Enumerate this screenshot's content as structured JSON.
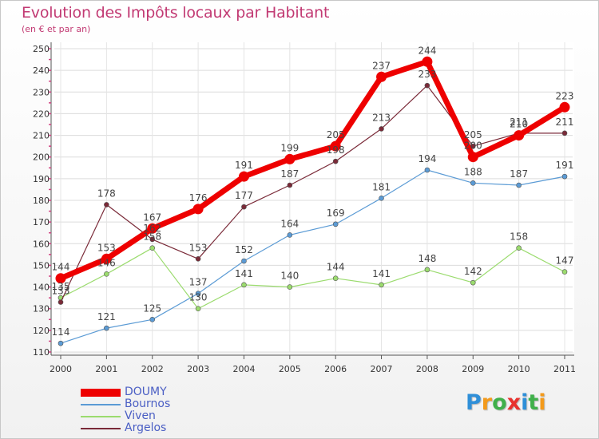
{
  "header": {
    "title": "Evolution des Impôts locaux par Habitant",
    "subtitle": "(en € et par an)"
  },
  "logo": {
    "letters": [
      "P",
      "r",
      "o",
      "x",
      "i",
      "t",
      "i"
    ],
    "colors": [
      "#2f8fd8",
      "#f39a1b",
      "#3fb04a",
      "#e8322e",
      "#2f8fd8",
      "#3fb04a",
      "#f39a1b"
    ]
  },
  "chart_data": {
    "type": "line",
    "x": [
      "2000",
      "2001",
      "2002",
      "2003",
      "2004",
      "2005",
      "2006",
      "2007",
      "2008",
      "2009",
      "2010",
      "2011"
    ],
    "ylim": [
      110,
      250
    ],
    "yticks": [
      110,
      120,
      130,
      140,
      150,
      160,
      170,
      180,
      190,
      200,
      210,
      220,
      230,
      240,
      250
    ],
    "grid": true,
    "legend_position": "bottom-left",
    "series": [
      {
        "name": "DOUMY",
        "color": "#ee0000",
        "values": [
          144,
          153,
          167,
          176,
          191,
          199,
          205,
          237,
          244,
          200,
          210,
          223
        ]
      },
      {
        "name": "Bournos",
        "color": "#5b9bd5",
        "values": [
          114,
          121,
          125,
          137,
          152,
          164,
          169,
          181,
          194,
          188,
          187,
          191
        ]
      },
      {
        "name": "Viven",
        "color": "#9bdb6e",
        "values": [
          135,
          146,
          158,
          130,
          141,
          140,
          144,
          141,
          148,
          142,
          158,
          147
        ]
      },
      {
        "name": "Argelos",
        "color": "#7a2a38",
        "values": [
          133,
          178,
          162,
          153,
          177,
          187,
          198,
          213,
          233,
          205,
          211,
          211
        ]
      }
    ],
    "data_labels": [
      [
        "144",
        "153",
        "167",
        "176",
        "191",
        "199",
        "205",
        "237",
        "244",
        "200",
        "210",
        "223"
      ],
      [
        "114",
        "121",
        "125",
        "137",
        "152",
        "164",
        "169",
        "181",
        "194",
        "188",
        "187",
        "191"
      ],
      [
        "135",
        "146",
        "158",
        "130",
        "141",
        "140",
        "144",
        "141",
        "148",
        "142",
        "158",
        "147"
      ],
      [
        "133",
        "178",
        "162",
        "153",
        "177",
        "187",
        "198",
        "213",
        "233",
        "205",
        "211",
        "211"
      ]
    ]
  }
}
